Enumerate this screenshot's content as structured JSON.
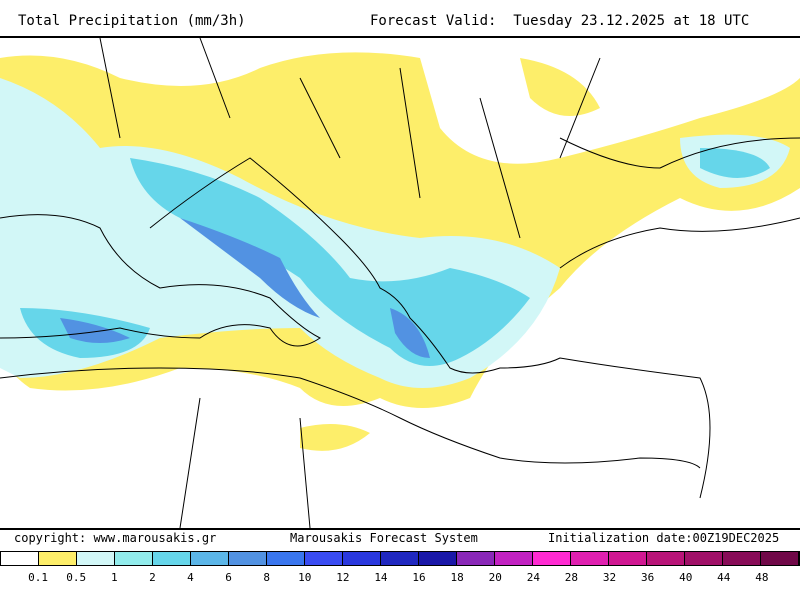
{
  "header": {
    "title": "Total Precipitation (mm/3h)",
    "valid": "Forecast Valid:  Tuesday 23.12.2025 at 18 UTC"
  },
  "footer": {
    "copyright": "copyright: www.marousakis.gr",
    "system": "Marousakis Forecast System",
    "init": "Initialization date:00Z19DEC2025"
  },
  "legend": {
    "colors": [
      "#ffffff",
      "#fdee6a",
      "#d2f7f7",
      "#92ecec",
      "#66d6ea",
      "#5cb6e8",
      "#5292e2",
      "#3a76ee",
      "#3a4cf2",
      "#2a38de",
      "#2028c0",
      "#1a18a8",
      "#8a28b8",
      "#c222c2",
      "#ff2ad2",
      "#e020b0",
      "#d01892",
      "#b81478",
      "#a01068",
      "#880c58",
      "#700848"
    ],
    "labels": [
      "0.1",
      "0.5",
      "1",
      "2",
      "4",
      "6",
      "8",
      "10",
      "12",
      "14",
      "16",
      "18",
      "20",
      "24",
      "28",
      "32",
      "36",
      "40",
      "44",
      "48"
    ]
  }
}
